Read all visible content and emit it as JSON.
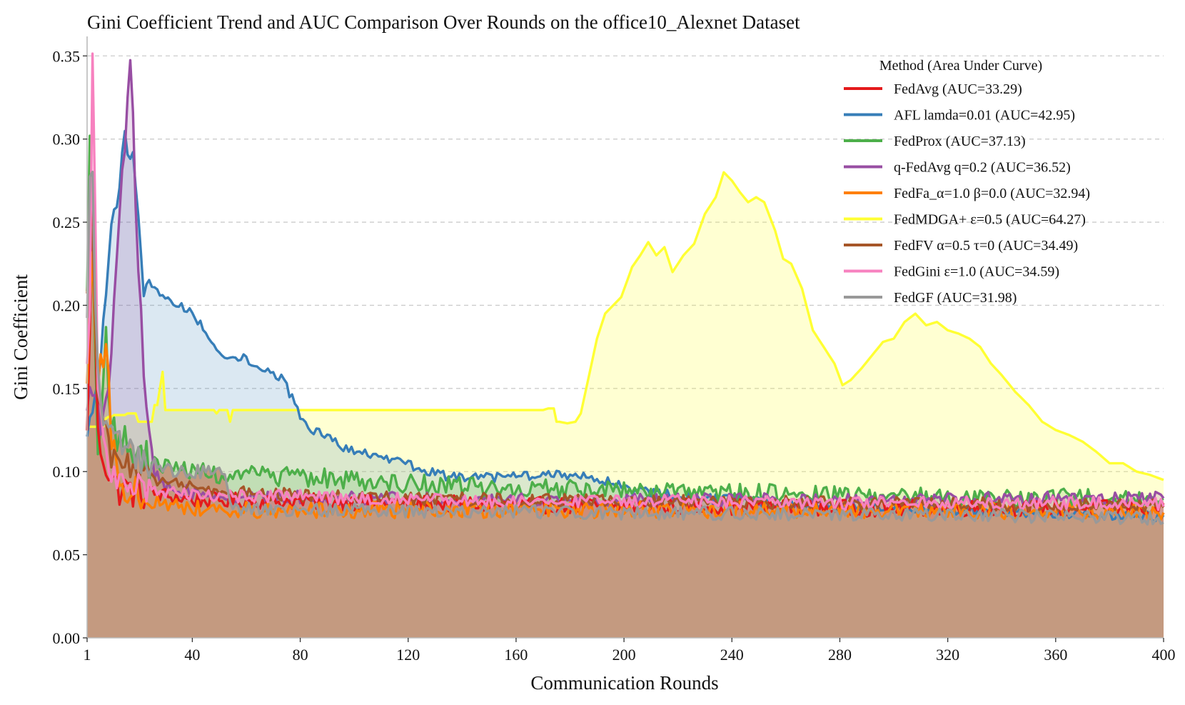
{
  "chart_data": {
    "type": "area",
    "title": "Gini Coefficient Trend and AUC Comparison Over Rounds on the office10_Alexnet Dataset",
    "xlabel": "Communication Rounds",
    "ylabel": "Gini Coefficient",
    "xlim": [
      1,
      400
    ],
    "ylim": [
      0,
      0.36
    ],
    "xticks": [
      1,
      40,
      80,
      120,
      160,
      200,
      240,
      280,
      320,
      360,
      400
    ],
    "xtick_labels": [
      "1",
      "40",
      "80",
      "120",
      "160",
      "200",
      "240",
      "280",
      "320",
      "360",
      "400"
    ],
    "yticks": [
      0.0,
      0.05,
      0.1,
      0.15,
      0.2,
      0.25,
      0.3,
      0.35
    ],
    "ytick_labels": [
      "0.00",
      "0.05",
      "0.10",
      "0.15",
      "0.20",
      "0.25",
      "0.30",
      "0.35"
    ],
    "grid": "horizontal dashed",
    "legend_title": "Method (Area Under Curve)",
    "legend_position": "top-right",
    "series": [
      {
        "name": "FedAvg (AUC=33.29)",
        "color": "#e41a1c",
        "points": [
          [
            1,
            0.12
          ],
          [
            3,
            0.26
          ],
          [
            5,
            0.12
          ],
          [
            9,
            0.1
          ],
          [
            12,
            0.09
          ],
          [
            20,
            0.088
          ],
          [
            40,
            0.083
          ],
          [
            80,
            0.082
          ],
          [
            120,
            0.081
          ],
          [
            160,
            0.08
          ],
          [
            200,
            0.079
          ],
          [
            240,
            0.079
          ],
          [
            280,
            0.078
          ],
          [
            320,
            0.078
          ],
          [
            360,
            0.078
          ],
          [
            400,
            0.078
          ]
        ],
        "noise": 0.005
      },
      {
        "name": "AFL lamda=0.01 (AUC=42.95)",
        "color": "#377eb8",
        "points": [
          [
            1,
            0.12
          ],
          [
            5,
            0.155
          ],
          [
            8,
            0.2
          ],
          [
            10,
            0.25
          ],
          [
            12,
            0.26
          ],
          [
            15,
            0.3
          ],
          [
            18,
            0.29
          ],
          [
            20,
            0.25
          ],
          [
            22,
            0.21
          ],
          [
            26,
            0.21
          ],
          [
            30,
            0.205
          ],
          [
            40,
            0.195
          ],
          [
            47,
            0.18
          ],
          [
            50,
            0.17
          ],
          [
            55,
            0.17
          ],
          [
            60,
            0.168
          ],
          [
            70,
            0.158
          ],
          [
            74,
            0.155
          ],
          [
            78,
            0.14
          ],
          [
            82,
            0.128
          ],
          [
            90,
            0.12
          ],
          [
            100,
            0.112
          ],
          [
            110,
            0.108
          ],
          [
            120,
            0.104
          ],
          [
            135,
            0.097
          ],
          [
            150,
            0.096
          ],
          [
            170,
            0.098
          ],
          [
            185,
            0.098
          ],
          [
            193,
            0.095
          ],
          [
            200,
            0.09
          ],
          [
            220,
            0.085
          ],
          [
            240,
            0.083
          ],
          [
            260,
            0.081
          ],
          [
            280,
            0.079
          ],
          [
            300,
            0.078
          ],
          [
            320,
            0.077
          ],
          [
            340,
            0.076
          ],
          [
            360,
            0.075
          ],
          [
            380,
            0.074
          ],
          [
            400,
            0.073
          ]
        ],
        "noise": 0.003
      },
      {
        "name": "FedProx (AUC=37.13)",
        "color": "#4daf4a",
        "points": [
          [
            1,
            0.21
          ],
          [
            2,
            0.305
          ],
          [
            3,
            0.22
          ],
          [
            5,
            0.12
          ],
          [
            7,
            0.15
          ],
          [
            8,
            0.18
          ],
          [
            10,
            0.13
          ],
          [
            15,
            0.115
          ],
          [
            25,
            0.105
          ],
          [
            35,
            0.102
          ],
          [
            50,
            0.098
          ],
          [
            70,
            0.097
          ],
          [
            90,
            0.096
          ],
          [
            110,
            0.094
          ],
          [
            130,
            0.092
          ],
          [
            150,
            0.09
          ],
          [
            180,
            0.089
          ],
          [
            200,
            0.088
          ],
          [
            240,
            0.087
          ],
          [
            280,
            0.086
          ],
          [
            320,
            0.085
          ],
          [
            360,
            0.084
          ],
          [
            400,
            0.083
          ]
        ],
        "noise": 0.006
      },
      {
        "name": "q-FedAvg q=0.2 (AUC=36.52)",
        "color": "#984ea3",
        "points": [
          [
            1,
            0.14
          ],
          [
            3,
            0.145
          ],
          [
            6,
            0.13
          ],
          [
            9,
            0.15
          ],
          [
            11,
            0.2
          ],
          [
            13,
            0.25
          ],
          [
            15,
            0.3
          ],
          [
            16,
            0.32
          ],
          [
            17,
            0.34
          ],
          [
            18,
            0.31
          ],
          [
            20,
            0.22
          ],
          [
            22,
            0.16
          ],
          [
            24,
            0.13
          ],
          [
            26,
            0.1
          ],
          [
            30,
            0.09
          ],
          [
            50,
            0.085
          ],
          [
            100,
            0.084
          ],
          [
            150,
            0.083
          ],
          [
            200,
            0.083
          ],
          [
            250,
            0.083
          ],
          [
            300,
            0.083
          ],
          [
            350,
            0.084
          ],
          [
            400,
            0.084
          ]
        ],
        "noise": 0.004
      },
      {
        "name": "FedFa_α=1.0 β=0.0 (AUC=32.94)",
        "color": "#ff7f00",
        "points": [
          [
            1,
            0.16
          ],
          [
            3,
            0.24
          ],
          [
            5,
            0.15
          ],
          [
            7,
            0.17
          ],
          [
            8,
            0.18
          ],
          [
            10,
            0.12
          ],
          [
            15,
            0.09
          ],
          [
            25,
            0.082
          ],
          [
            40,
            0.078
          ],
          [
            60,
            0.077
          ],
          [
            100,
            0.077
          ],
          [
            150,
            0.077
          ],
          [
            200,
            0.077
          ],
          [
            250,
            0.077
          ],
          [
            300,
            0.077
          ],
          [
            350,
            0.076
          ],
          [
            400,
            0.076
          ]
        ],
        "noise": 0.005
      },
      {
        "name": "FedMDGA+ ε=0.5 (AUC=64.27)",
        "color": "#ffff33",
        "points": [
          [
            1,
            0.127
          ],
          [
            2,
            0.127
          ],
          [
            3,
            0.127
          ],
          [
            4,
            0.127
          ],
          [
            5,
            0.127
          ],
          [
            6,
            0.127
          ],
          [
            7,
            0.127
          ],
          [
            8,
            0.132
          ],
          [
            9,
            0.133
          ],
          [
            10,
            0.133
          ],
          [
            11,
            0.134
          ],
          [
            12,
            0.134
          ],
          [
            13,
            0.134
          ],
          [
            14,
            0.134
          ],
          [
            15,
            0.134
          ],
          [
            16,
            0.135
          ],
          [
            17,
            0.135
          ],
          [
            18,
            0.135
          ],
          [
            19,
            0.135
          ],
          [
            20,
            0.13
          ],
          [
            21,
            0.13
          ],
          [
            22,
            0.13
          ],
          [
            23,
            0.13
          ],
          [
            24,
            0.13
          ],
          [
            25,
            0.13
          ],
          [
            26,
            0.14
          ],
          [
            27,
            0.14
          ],
          [
            28,
            0.15
          ],
          [
            29,
            0.16
          ],
          [
            30,
            0.137
          ],
          [
            40,
            0.137
          ],
          [
            48,
            0.137
          ],
          [
            49,
            0.135
          ],
          [
            50,
            0.137
          ],
          [
            53,
            0.137
          ],
          [
            54,
            0.13
          ],
          [
            55,
            0.137
          ],
          [
            60,
            0.137
          ],
          [
            80,
            0.137
          ],
          [
            100,
            0.137
          ],
          [
            120,
            0.137
          ],
          [
            140,
            0.137
          ],
          [
            160,
            0.137
          ],
          [
            170,
            0.137
          ],
          [
            172,
            0.138
          ],
          [
            174,
            0.138
          ],
          [
            175,
            0.13
          ],
          [
            176,
            0.13
          ],
          [
            179,
            0.129
          ],
          [
            182,
            0.13
          ],
          [
            184,
            0.135
          ],
          [
            186,
            0.15
          ],
          [
            188,
            0.165
          ],
          [
            190,
            0.18
          ],
          [
            193,
            0.195
          ],
          [
            196,
            0.2
          ],
          [
            199,
            0.205
          ],
          [
            203,
            0.223
          ],
          [
            206,
            0.23
          ],
          [
            209,
            0.238
          ],
          [
            212,
            0.23
          ],
          [
            215,
            0.235
          ],
          [
            218,
            0.22
          ],
          [
            222,
            0.23
          ],
          [
            226,
            0.237
          ],
          [
            230,
            0.255
          ],
          [
            234,
            0.265
          ],
          [
            237,
            0.28
          ],
          [
            240,
            0.275
          ],
          [
            243,
            0.268
          ],
          [
            246,
            0.262
          ],
          [
            249,
            0.265
          ],
          [
            252,
            0.262
          ],
          [
            256,
            0.245
          ],
          [
            259,
            0.228
          ],
          [
            262,
            0.225
          ],
          [
            266,
            0.21
          ],
          [
            270,
            0.185
          ],
          [
            274,
            0.175
          ],
          [
            278,
            0.165
          ],
          [
            281,
            0.152
          ],
          [
            284,
            0.155
          ],
          [
            288,
            0.162
          ],
          [
            292,
            0.17
          ],
          [
            296,
            0.178
          ],
          [
            300,
            0.18
          ],
          [
            304,
            0.19
          ],
          [
            308,
            0.195
          ],
          [
            312,
            0.188
          ],
          [
            316,
            0.19
          ],
          [
            320,
            0.185
          ],
          [
            324,
            0.183
          ],
          [
            328,
            0.18
          ],
          [
            332,
            0.175
          ],
          [
            336,
            0.165
          ],
          [
            340,
            0.158
          ],
          [
            345,
            0.148
          ],
          [
            350,
            0.14
          ],
          [
            355,
            0.13
          ],
          [
            360,
            0.125
          ],
          [
            365,
            0.122
          ],
          [
            370,
            0.118
          ],
          [
            375,
            0.112
          ],
          [
            380,
            0.105
          ],
          [
            385,
            0.105
          ],
          [
            390,
            0.1
          ],
          [
            395,
            0.098
          ],
          [
            400,
            0.095
          ]
        ],
        "noise": 0.0
      },
      {
        "name": "FedFV α=0.5 τ=0 (AUC=34.49)",
        "color": "#a65628",
        "points": [
          [
            1,
            0.2
          ],
          [
            3,
            0.25
          ],
          [
            5,
            0.14
          ],
          [
            10,
            0.11
          ],
          [
            20,
            0.1
          ],
          [
            30,
            0.093
          ],
          [
            50,
            0.088
          ],
          [
            80,
            0.086
          ],
          [
            120,
            0.084
          ],
          [
            160,
            0.083
          ],
          [
            200,
            0.082
          ],
          [
            240,
            0.082
          ],
          [
            280,
            0.081
          ],
          [
            320,
            0.081
          ],
          [
            360,
            0.08
          ],
          [
            400,
            0.08
          ]
        ],
        "noise": 0.004
      },
      {
        "name": "FedGini ε=1.0 (AUC=34.59)",
        "color": "#f781bf",
        "points": [
          [
            1,
            0.16
          ],
          [
            2,
            0.2
          ],
          [
            3,
            0.344
          ],
          [
            4,
            0.26
          ],
          [
            5,
            0.15
          ],
          [
            8,
            0.11
          ],
          [
            12,
            0.095
          ],
          [
            20,
            0.09
          ],
          [
            40,
            0.086
          ],
          [
            80,
            0.085
          ],
          [
            120,
            0.083
          ],
          [
            160,
            0.082
          ],
          [
            200,
            0.082
          ],
          [
            240,
            0.082
          ],
          [
            280,
            0.081
          ],
          [
            320,
            0.081
          ],
          [
            360,
            0.081
          ],
          [
            400,
            0.081
          ]
        ],
        "noise": 0.004
      },
      {
        "name": "FedGF (AUC=31.98)",
        "color": "#999999",
        "points": [
          [
            1,
            0.19
          ],
          [
            2,
            0.27
          ],
          [
            3,
            0.28
          ],
          [
            4,
            0.2
          ],
          [
            6,
            0.14
          ],
          [
            10,
            0.12
          ],
          [
            18,
            0.11
          ],
          [
            25,
            0.105
          ],
          [
            35,
            0.1
          ],
          [
            45,
            0.1
          ],
          [
            52,
            0.098
          ],
          [
            55,
            0.078
          ],
          [
            80,
            0.077
          ],
          [
            120,
            0.076
          ],
          [
            160,
            0.076
          ],
          [
            200,
            0.075
          ],
          [
            240,
            0.075
          ],
          [
            280,
            0.074
          ],
          [
            320,
            0.074
          ],
          [
            360,
            0.073
          ],
          [
            400,
            0.072
          ]
        ],
        "noise": 0.004
      }
    ]
  }
}
